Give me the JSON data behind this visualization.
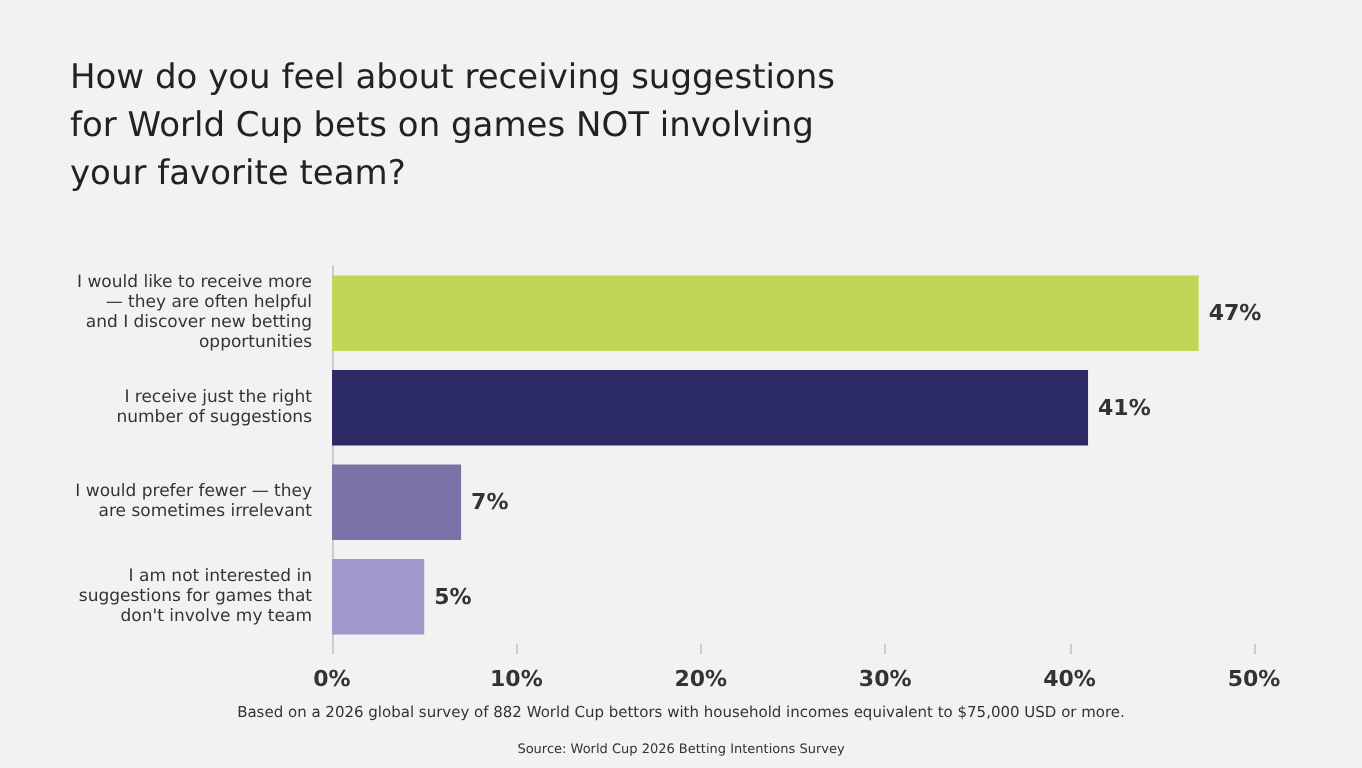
{
  "chart_data": {
    "type": "bar",
    "orientation": "horizontal",
    "title": "How do you feel about receiving suggestions\nfor World Cup bets on games NOT involving\nyour favorite team?",
    "categories": [
      "I would like to receive more\n— they are often helpful\nand I discover new betting\nopportunities",
      "I receive just the right\nnumber of suggestions",
      "I would prefer fewer — they\nare sometimes irrelevant",
      "I am not interested in\nsuggestions for games that\ndon't involve my team"
    ],
    "values": [
      47,
      41,
      7,
      5
    ],
    "colors": [
      "#c2d559",
      "#2d2b66",
      "#7b73a8",
      "#9f98cb"
    ],
    "value_labels": [
      "47%",
      "41%",
      "7%",
      "5%"
    ],
    "xlim": [
      0,
      50
    ],
    "xticks": [
      {
        "value": 0,
        "label": "0%"
      },
      {
        "value": 10,
        "label": "10%"
      },
      {
        "value": 20,
        "label": "20%"
      },
      {
        "value": 30,
        "label": "30%"
      },
      {
        "value": 40,
        "label": "40%"
      },
      {
        "value": 50,
        "label": "50%"
      }
    ],
    "grid": false,
    "annotations": [
      "Based on a 2026 global survey of 882 World Cup bettors with household incomes equivalent to $75,000 USD or more.",
      "Source: World Cup 2026 Betting Intentions Survey"
    ]
  }
}
